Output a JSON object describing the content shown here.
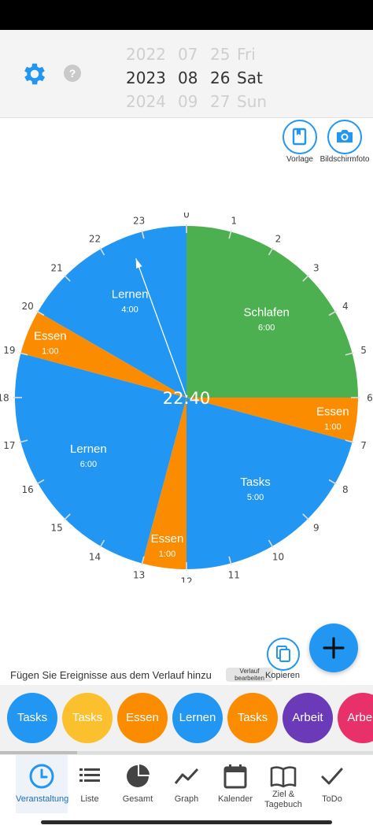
{
  "header": {
    "date_picker": {
      "years": [
        "2022",
        "2023",
        "2024"
      ],
      "months": [
        "07",
        "08",
        "09"
      ],
      "days": [
        "25",
        "26",
        "27"
      ],
      "weekdays": [
        "Fri",
        "Sat",
        "Sun"
      ]
    }
  },
  "actions": {
    "vorlage_label": "Vorlage",
    "screenshot_label": "Bildschirmfoto"
  },
  "clock": {
    "current_time": "22:40",
    "current_hour": 22.667,
    "hour_labels": [
      "0",
      "1",
      "2",
      "3",
      "4",
      "5",
      "6",
      "7",
      "8",
      "9",
      "10",
      "11",
      "12",
      "13",
      "14",
      "15",
      "16",
      "17",
      "18",
      "19",
      "20",
      "21",
      "22",
      "23"
    ],
    "segments": [
      {
        "name": "Schlafen",
        "duration": "6:00",
        "start": 0,
        "end": 6,
        "color": "#4caf50"
      },
      {
        "name": "Essen",
        "duration": "1:00",
        "start": 6,
        "end": 7,
        "color": "#fb8c00"
      },
      {
        "name": "Tasks",
        "duration": "5:00",
        "start": 7,
        "end": 12,
        "color": "#2196f3"
      },
      {
        "name": "Essen",
        "duration": "1:00",
        "start": 12,
        "end": 13,
        "color": "#fb8c00"
      },
      {
        "name": "Lernen",
        "duration": "6:00",
        "start": 13,
        "end": 19,
        "color": "#2196f3"
      },
      {
        "name": "Essen",
        "duration": "1:00",
        "start": 19,
        "end": 20,
        "color": "#fb8c00"
      },
      {
        "name": "Lernen",
        "duration": "4:00",
        "start": 20,
        "end": 24,
        "color": "#2196f3"
      }
    ]
  },
  "history": {
    "hint": "Fügen Sie Ereignisse aus dem Verlauf hinzu",
    "edit_button": "Verlauf bearbeiten",
    "copy_label": "Kopieren"
  },
  "chips": [
    {
      "label": "Tasks",
      "color": "#2196f3"
    },
    {
      "label": "Tasks",
      "color": "#fbc02d"
    },
    {
      "label": "Essen",
      "color": "#fb8c00"
    },
    {
      "label": "Lernen",
      "color": "#2196f3"
    },
    {
      "label": "Tasks",
      "color": "#fb8c00"
    },
    {
      "label": "Arbeit",
      "color": "#6a3ab8"
    },
    {
      "label": "Arbeit",
      "color": "#e8306a"
    }
  ],
  "nav": {
    "items": [
      {
        "label": "Veranstaltung",
        "icon": "clock-icon"
      },
      {
        "label": "Liste",
        "icon": "list-icon"
      },
      {
        "label": "Gesamt",
        "icon": "pie-chart-icon"
      },
      {
        "label": "Graph",
        "icon": "line-graph-icon"
      },
      {
        "label": "Kalender",
        "icon": "calendar-icon"
      },
      {
        "label": "Ziel &\nTagebuch",
        "icon": "book-icon"
      },
      {
        "label": "ToDo",
        "icon": "checkmark-icon"
      }
    ]
  },
  "colors": {
    "accent": "#2196f3",
    "active_nav": "#1e6fb8"
  }
}
